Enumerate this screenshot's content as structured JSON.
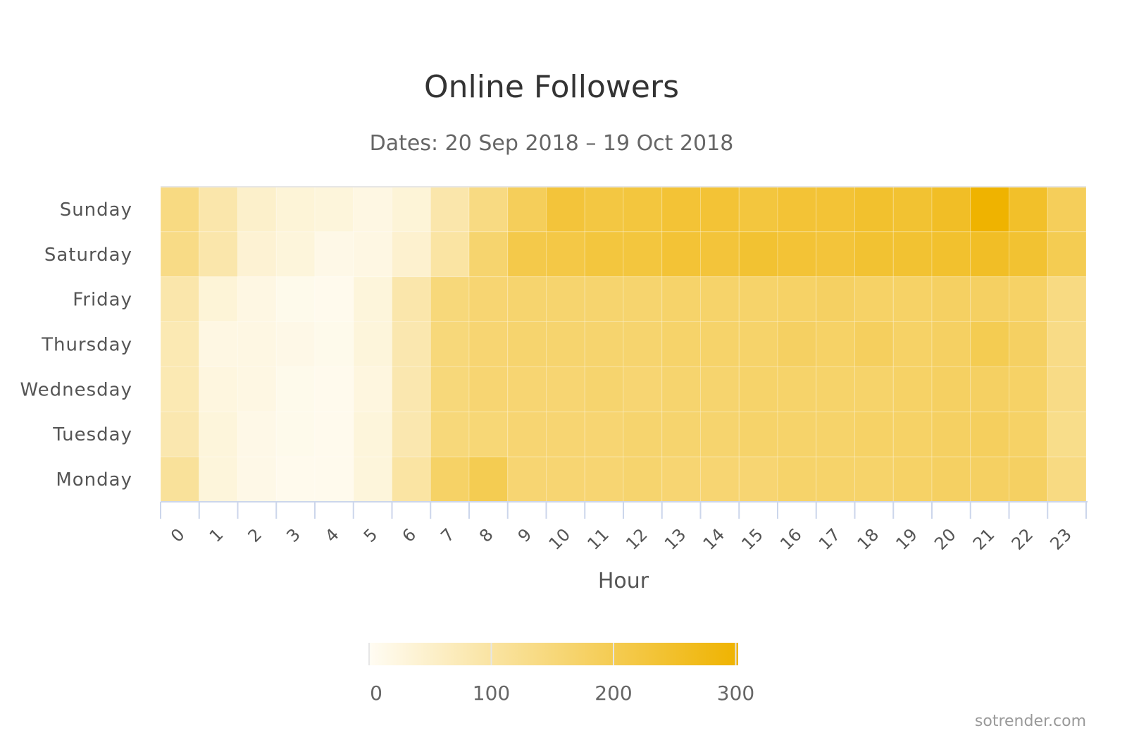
{
  "chart_data": {
    "type": "heatmap",
    "title": "Online Followers",
    "subtitle": "Dates: 20 Sep 2018 – 19 Oct 2018",
    "xlabel": "Hour",
    "ylabel": "",
    "x": [
      "0",
      "1",
      "2",
      "3",
      "4",
      "5",
      "6",
      "7",
      "8",
      "9",
      "10",
      "11",
      "12",
      "13",
      "14",
      "15",
      "16",
      "17",
      "18",
      "19",
      "20",
      "21",
      "22",
      "23"
    ],
    "y": [
      "Sunday",
      "Saturday",
      "Friday",
      "Thursday",
      "Wednesday",
      "Tuesday",
      "Monday"
    ],
    "values": [
      [
        140,
        90,
        50,
        35,
        30,
        20,
        35,
        90,
        140,
        190,
        230,
        220,
        225,
        235,
        235,
        225,
        235,
        235,
        245,
        240,
        255,
        302,
        250,
        190
      ],
      [
        135,
        90,
        40,
        30,
        15,
        20,
        45,
        100,
        165,
        210,
        215,
        225,
        225,
        235,
        230,
        240,
        235,
        230,
        240,
        240,
        245,
        255,
        240,
        200
      ],
      [
        90,
        35,
        20,
        10,
        8,
        30,
        90,
        150,
        160,
        165,
        165,
        165,
        165,
        170,
        170,
        170,
        175,
        180,
        175,
        175,
        180,
        180,
        175,
        140
      ],
      [
        80,
        20,
        20,
        15,
        10,
        30,
        85,
        150,
        160,
        165,
        165,
        165,
        165,
        170,
        170,
        170,
        180,
        175,
        185,
        175,
        180,
        200,
        180,
        135
      ],
      [
        80,
        25,
        20,
        10,
        8,
        25,
        85,
        150,
        160,
        160,
        160,
        165,
        160,
        165,
        165,
        170,
        170,
        170,
        170,
        175,
        180,
        180,
        175,
        135
      ],
      [
        85,
        30,
        15,
        10,
        8,
        30,
        85,
        150,
        155,
        160,
        160,
        160,
        165,
        165,
        165,
        170,
        170,
        170,
        175,
        175,
        180,
        185,
        175,
        130
      ],
      [
        110,
        30,
        15,
        8,
        8,
        30,
        100,
        175,
        200,
        160,
        160,
        160,
        165,
        160,
        160,
        160,
        170,
        170,
        170,
        175,
        180,
        180,
        180,
        140
      ]
    ],
    "color_axis": {
      "min": 0,
      "max": 302,
      "min_color": "#fffcf3",
      "max_color": "#efb300",
      "ticks": [
        "0",
        "100",
        "200",
        "300"
      ],
      "tick_values": [
        0,
        100,
        200,
        300
      ]
    },
    "legend": "bottom-center",
    "credit": "sotrender.com"
  }
}
